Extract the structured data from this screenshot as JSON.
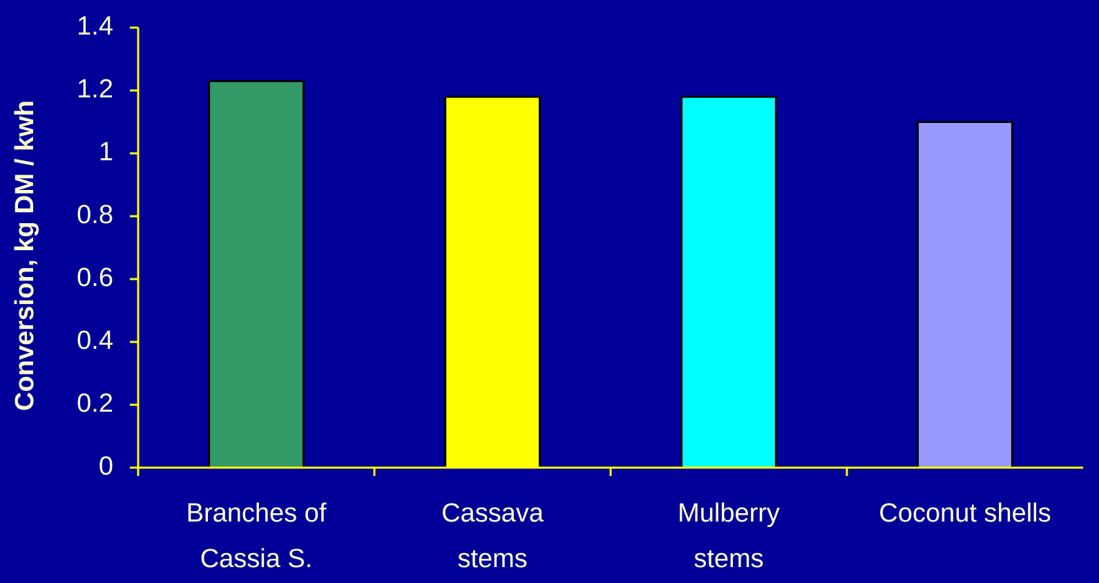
{
  "chart_data": {
    "type": "bar",
    "y_label": "Conversion, kg DM / kwh",
    "categories": [
      [
        "Branches of",
        "Cassia S."
      ],
      [
        "Cassava",
        "stems"
      ],
      [
        "Mulberry",
        "stems"
      ],
      [
        "Coconut shells"
      ]
    ],
    "values": [
      1.23,
      1.18,
      1.18,
      1.1
    ],
    "colors": [
      "#339966",
      "#ffff00",
      "#00ffff",
      "#9999ff"
    ],
    "ylim": [
      0,
      1.4
    ],
    "yticks": [
      0,
      0.2,
      0.4,
      0.6,
      0.8,
      1,
      1.2,
      1.4
    ],
    "grid": false
  }
}
